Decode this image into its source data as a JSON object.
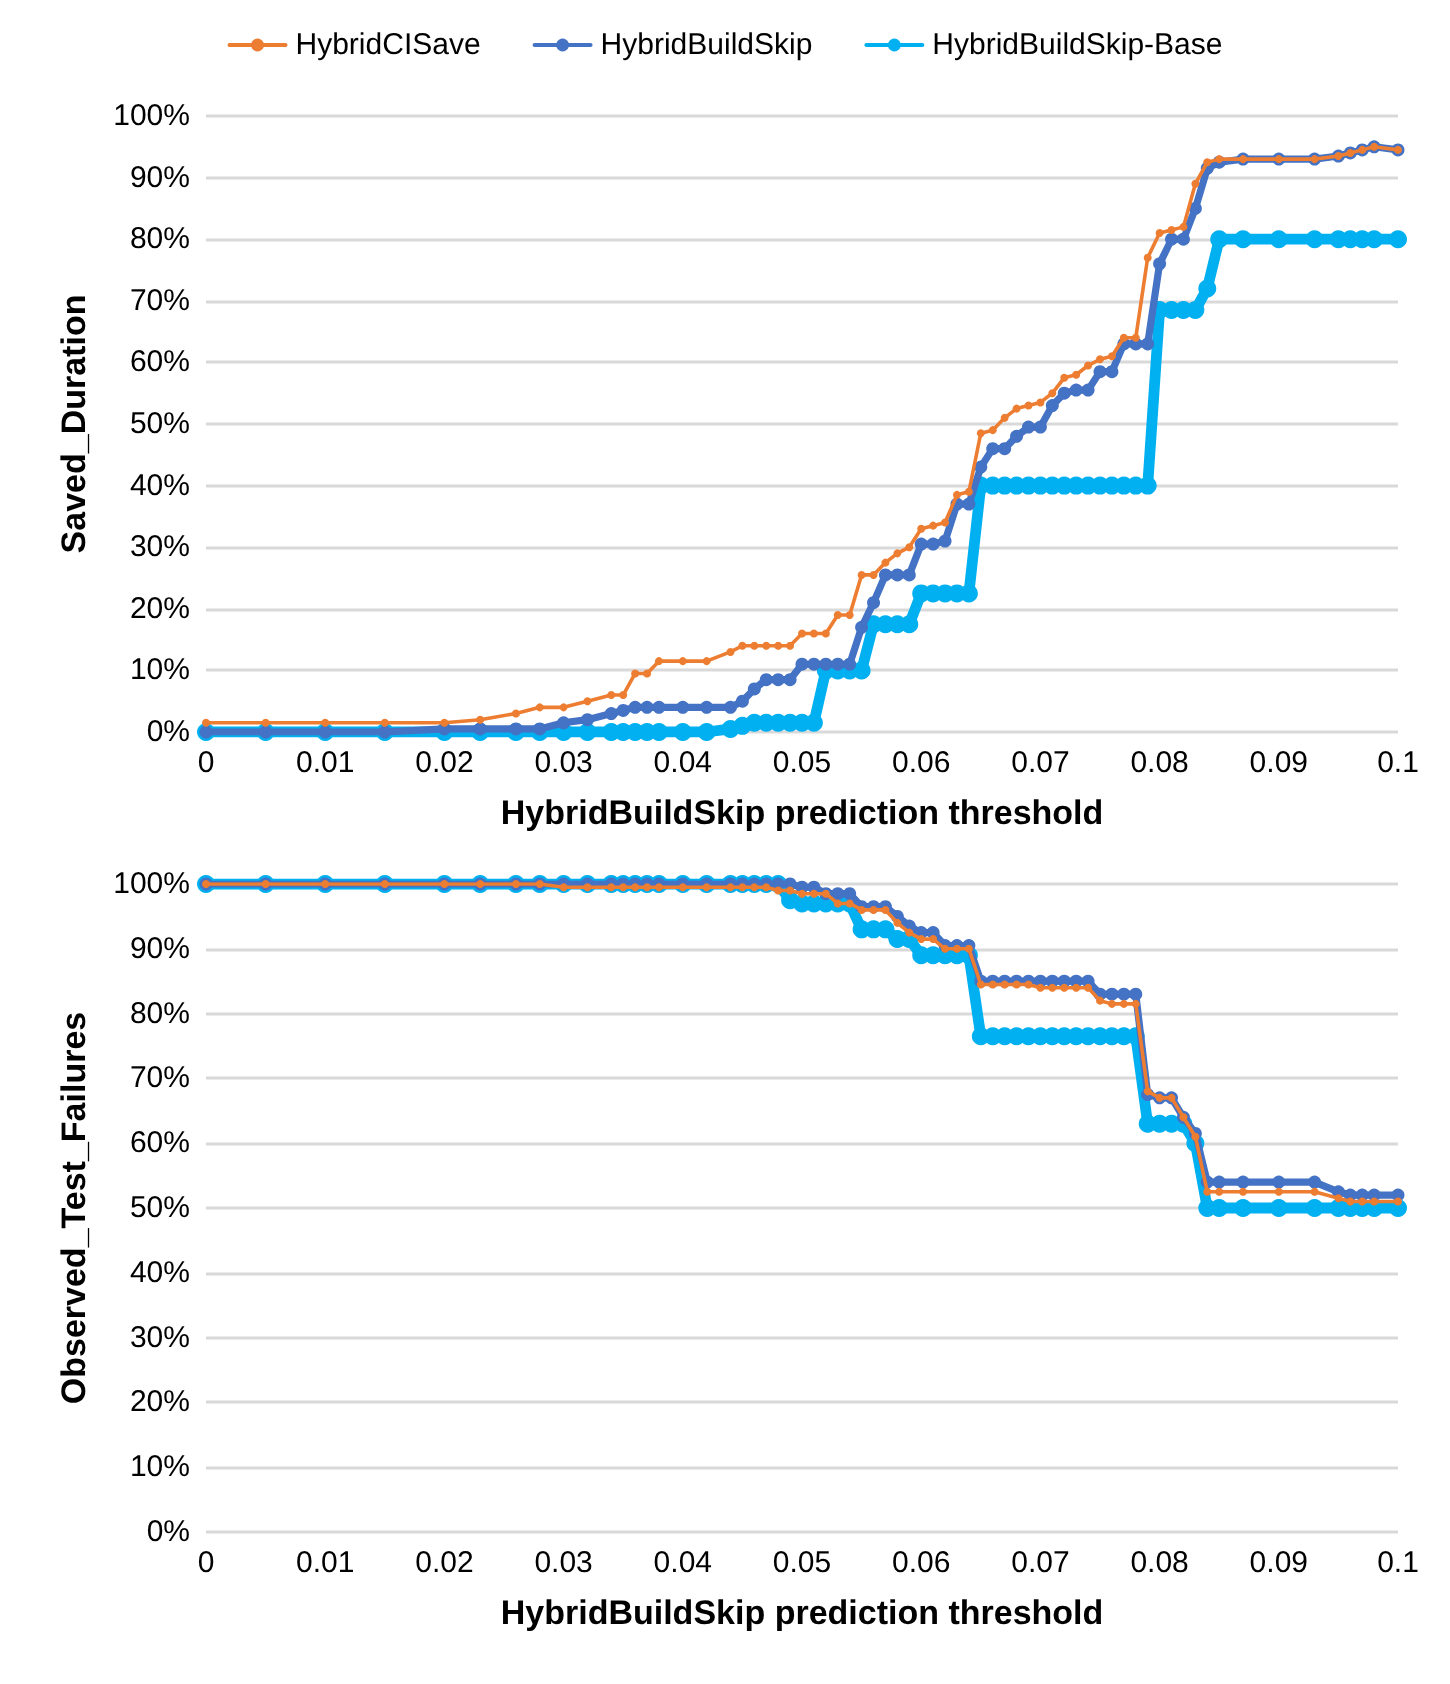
{
  "chart_data": [
    {
      "type": "line",
      "xlabel": "HybridBuildSkip prediction threshold",
      "ylabel": "Saved_Duration",
      "legend": "top",
      "grid": "y",
      "marker": "circle",
      "line_style": "solid",
      "x": [
        0,
        0.005,
        0.01,
        0.015,
        0.02,
        0.023,
        0.026,
        0.028,
        0.03,
        0.032,
        0.034,
        0.035,
        0.036,
        0.037,
        0.038,
        0.04,
        0.042,
        0.044,
        0.045,
        0.046,
        0.047,
        0.048,
        0.049,
        0.05,
        0.051,
        0.052,
        0.053,
        0.054,
        0.055,
        0.056,
        0.057,
        0.058,
        0.059,
        0.06,
        0.061,
        0.062,
        0.063,
        0.064,
        0.065,
        0.066,
        0.067,
        0.068,
        0.069,
        0.07,
        0.071,
        0.072,
        0.073,
        0.074,
        0.075,
        0.076,
        0.077,
        0.078,
        0.079,
        0.08,
        0.081,
        0.082,
        0.083,
        0.084,
        0.085,
        0.087,
        0.09,
        0.093,
        0.095,
        0.096,
        0.097,
        0.098,
        0.1
      ],
      "xlim": [
        0,
        0.1
      ],
      "xticks": [
        0,
        0.01,
        0.02,
        0.03,
        0.04,
        0.05,
        0.06,
        0.07,
        0.08,
        0.09,
        0.1
      ],
      "ylim": [
        0,
        100
      ],
      "yticks": [
        {
          "value": 0,
          "label": "0%"
        },
        {
          "value": 10,
          "label": "10%"
        },
        {
          "value": 20,
          "label": "20%"
        },
        {
          "value": 30,
          "label": "30%"
        },
        {
          "value": 40,
          "label": "40%"
        },
        {
          "value": 50,
          "label": "50%"
        },
        {
          "value": 60,
          "label": "60%"
        },
        {
          "value": 70,
          "label": "70%"
        },
        {
          "value": 80,
          "label": "80%"
        },
        {
          "value": 90,
          "label": "90%"
        },
        {
          "value": 100,
          "label": "100%"
        }
      ],
      "series": [
        {
          "name": "HybridCISave",
          "color": "#ed7d31",
          "values": [
            1.5,
            1.5,
            1.5,
            1.5,
            1.5,
            2,
            3,
            4,
            4,
            5,
            6,
            6,
            9.5,
            9.5,
            11.5,
            11.5,
            11.5,
            13,
            14,
            14,
            14,
            14,
            14,
            16,
            16,
            16,
            19,
            19,
            25.5,
            25.5,
            27.5,
            29,
            30,
            33,
            33.5,
            34,
            38.5,
            39,
            48.5,
            49,
            51,
            52.5,
            53,
            53.5,
            55,
            57.5,
            58,
            59.5,
            60.5,
            61,
            64,
            64,
            77,
            81,
            81.5,
            82,
            89,
            92.5,
            93,
            93,
            93,
            93,
            93.5,
            94,
            94.5,
            95,
            94.5
          ]
        },
        {
          "name": "HybridBuildSkip",
          "color": "#4472c4",
          "values": [
            0,
            0,
            0,
            0,
            0.5,
            0.5,
            0.5,
            0.5,
            1.5,
            2,
            3,
            3.5,
            4,
            4,
            4,
            4,
            4,
            4,
            5,
            7,
            8.5,
            8.5,
            8.5,
            11,
            11,
            11,
            11,
            11,
            17,
            21,
            25.5,
            25.5,
            25.5,
            30.5,
            30.5,
            31,
            37,
            37,
            43,
            46,
            46,
            48,
            49.5,
            49.5,
            53,
            55,
            55.5,
            55.5,
            58.5,
            58.5,
            63,
            63,
            63,
            76,
            80,
            80,
            85,
            91.5,
            92.5,
            93,
            93,
            93,
            93.5,
            94,
            94.5,
            95,
            94.5
          ]
        },
        {
          "name": "HybridBuildSkip-Base",
          "color": "#00b0f0",
          "values": [
            0,
            0,
            0,
            0,
            0,
            0,
            0,
            0,
            0,
            0,
            0,
            0,
            0,
            0,
            0,
            0,
            0,
            0.5,
            1,
            1.5,
            1.5,
            1.5,
            1.5,
            1.5,
            1.5,
            10,
            10,
            10,
            10,
            17.5,
            17.5,
            17.5,
            17.5,
            22.5,
            22.5,
            22.5,
            22.5,
            22.5,
            40,
            40,
            40,
            40,
            40,
            40,
            40,
            40,
            40,
            40,
            40,
            40,
            40,
            40,
            40,
            68.5,
            68.5,
            68.5,
            68.5,
            72,
            80,
            80,
            80,
            80,
            80,
            80,
            80,
            80,
            80
          ]
        }
      ]
    },
    {
      "type": "line",
      "xlabel": "HybridBuildSkip prediction threshold",
      "ylabel": "Observed_Test_Failures",
      "grid": "y",
      "marker": "circle",
      "line_style": "solid",
      "x": [
        0,
        0.005,
        0.01,
        0.015,
        0.02,
        0.023,
        0.026,
        0.028,
        0.03,
        0.032,
        0.034,
        0.035,
        0.036,
        0.037,
        0.038,
        0.04,
        0.042,
        0.044,
        0.045,
        0.046,
        0.047,
        0.048,
        0.049,
        0.05,
        0.051,
        0.052,
        0.053,
        0.054,
        0.055,
        0.056,
        0.057,
        0.058,
        0.059,
        0.06,
        0.061,
        0.062,
        0.063,
        0.064,
        0.065,
        0.066,
        0.067,
        0.068,
        0.069,
        0.07,
        0.071,
        0.072,
        0.073,
        0.074,
        0.075,
        0.076,
        0.077,
        0.078,
        0.079,
        0.08,
        0.081,
        0.082,
        0.083,
        0.084,
        0.085,
        0.087,
        0.09,
        0.093,
        0.095,
        0.096,
        0.097,
        0.098,
        0.1
      ],
      "xlim": [
        0,
        0.1
      ],
      "xticks": [
        0,
        0.01,
        0.02,
        0.03,
        0.04,
        0.05,
        0.06,
        0.07,
        0.08,
        0.09,
        0.1
      ],
      "ylim": [
        0,
        100
      ],
      "yticks": [
        {
          "value": 0,
          "label": "0%"
        },
        {
          "value": 10,
          "label": "10%"
        },
        {
          "value": 20,
          "label": "20%"
        },
        {
          "value": 30,
          "label": "30%"
        },
        {
          "value": 40,
          "label": "40%"
        },
        {
          "value": 50,
          "label": "50%"
        },
        {
          "value": 60,
          "label": "60%"
        },
        {
          "value": 70,
          "label": "70%"
        },
        {
          "value": 80,
          "label": "80%"
        },
        {
          "value": 90,
          "label": "90%"
        },
        {
          "value": 100,
          "label": "100%"
        }
      ],
      "series": [
        {
          "color": "#ed7d31",
          "values": [
            100,
            100,
            100,
            100,
            100,
            100,
            100,
            100,
            99.5,
            99.5,
            99.5,
            99.5,
            99.5,
            99.5,
            99.5,
            99.5,
            99.5,
            99.5,
            99.5,
            99.5,
            99.5,
            99,
            99,
            98.5,
            98.5,
            98.5,
            97,
            97,
            96,
            96,
            96,
            94,
            92.5,
            91.5,
            91.5,
            90,
            90,
            90,
            84.5,
            84.5,
            84.5,
            84.5,
            84.5,
            84,
            84,
            84,
            84,
            84,
            82,
            81.5,
            81.5,
            81.5,
            68,
            67,
            67,
            64,
            61,
            52.5,
            52.5,
            52.5,
            52.5,
            52.5,
            51.5,
            51,
            51,
            51,
            51
          ]
        },
        {
          "color": "#4472c4",
          "values": [
            100,
            100,
            100,
            100,
            100,
            100,
            100,
            100,
            100,
            100,
            100,
            100,
            100,
            100,
            100,
            100,
            100,
            100,
            100,
            100,
            100,
            100,
            100,
            99.5,
            99.5,
            98.5,
            98.5,
            98.5,
            96.5,
            96.5,
            96.5,
            95,
            93.5,
            92.5,
            92.5,
            90.5,
            90.5,
            90.5,
            85,
            85,
            85,
            85,
            85,
            85,
            85,
            85,
            85,
            85,
            83,
            83,
            83,
            83,
            67.5,
            67,
            67,
            64,
            61.5,
            54,
            54,
            54,
            54,
            54,
            52.5,
            52,
            52,
            52,
            52
          ]
        },
        {
          "color": "#00b0f0",
          "values": [
            100,
            100,
            100,
            100,
            100,
            100,
            100,
            100,
            100,
            100,
            100,
            100,
            100,
            100,
            100,
            100,
            100,
            100,
            100,
            100,
            100,
            100,
            97.5,
            97,
            97,
            97,
            97,
            97,
            93,
            93,
            93,
            91.5,
            91.5,
            89,
            89,
            89,
            89,
            89,
            76.5,
            76.5,
            76.5,
            76.5,
            76.5,
            76.5,
            76.5,
            76.5,
            76.5,
            76.5,
            76.5,
            76.5,
            76.5,
            76.5,
            63,
            63,
            63,
            63,
            60,
            50,
            50,
            50,
            50,
            50,
            50,
            50,
            50,
            50,
            50
          ]
        }
      ]
    }
  ]
}
